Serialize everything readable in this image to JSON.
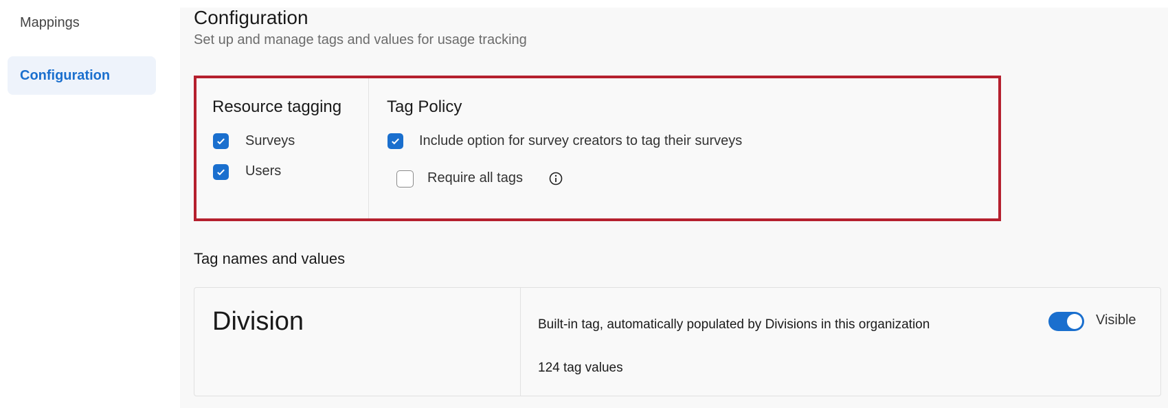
{
  "sidebar": {
    "items": [
      {
        "label": "Mappings",
        "active": false
      },
      {
        "label": "Configuration",
        "active": true
      }
    ]
  },
  "header": {
    "title": "Configuration",
    "subtitle": "Set up and manage tags and values for usage tracking"
  },
  "resource_tagging": {
    "title": "Resource tagging",
    "options": [
      {
        "label": "Surveys",
        "checked": true
      },
      {
        "label": "Users",
        "checked": true
      }
    ]
  },
  "tag_policy": {
    "title": "Tag Policy",
    "include_option": {
      "label": "Include option for survey creators to tag their surveys",
      "checked": true
    },
    "require_all": {
      "label": "Require all tags",
      "checked": false,
      "icon": "info-icon"
    }
  },
  "tag_section": {
    "title": "Tag names and values",
    "tags": [
      {
        "name": "Division",
        "description": "Built-in tag, automatically populated by Divisions in this organization",
        "count": "124 tag values",
        "toggle_label": "Visible",
        "visible": true
      }
    ]
  },
  "colors": {
    "accent": "#1a6fce",
    "highlight_border": "#b5202e"
  }
}
